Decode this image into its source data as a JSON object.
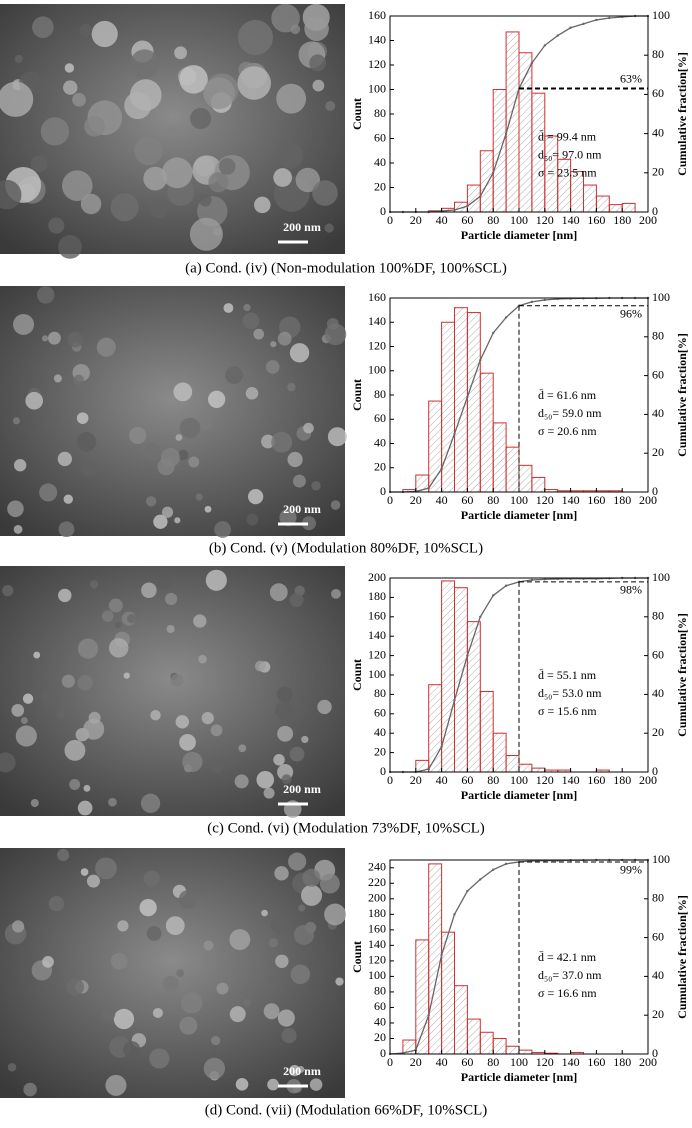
{
  "chart_data": [
    {
      "type": "histogram",
      "caption": "(a) Cond. (iv) (Non-modulation 100%DF, 100%SCL)",
      "scale_bar": "200 nm",
      "xlabel": "Particle diameter [nm]",
      "ylabel": "Count",
      "y2label": "Cumulative fraction[%]",
      "bins": [
        0,
        10,
        20,
        30,
        40,
        50,
        60,
        70,
        80,
        90,
        100,
        110,
        120,
        130,
        140,
        150,
        160,
        170,
        180,
        190,
        200
      ],
      "values": [
        0,
        0,
        0,
        1,
        3,
        8,
        22,
        50,
        100,
        147,
        130,
        97,
        62,
        43,
        33,
        22,
        13,
        6,
        7,
        0
      ],
      "color": "#d03030",
      "xlim": [
        0,
        200
      ],
      "xticks": [
        0,
        20,
        40,
        60,
        80,
        100,
        120,
        140,
        160,
        180,
        200
      ],
      "ylim": [
        0,
        160
      ],
      "yticks": [
        0,
        20,
        40,
        60,
        80,
        100,
        120,
        140,
        160
      ],
      "y2lim": [
        0,
        100
      ],
      "y2ticks": [
        0,
        20,
        40,
        60,
        80,
        100
      ],
      "cumulative": {
        "axis": "y2",
        "color": "#666666",
        "x": [
          0,
          10,
          20,
          30,
          40,
          50,
          60,
          70,
          80,
          90,
          100,
          110,
          120,
          130,
          140,
          150,
          160,
          170,
          180,
          190,
          200
        ],
        "values": [
          0,
          0,
          0,
          0,
          0.5,
          1,
          3,
          8,
          20,
          40,
          63,
          76,
          85,
          90,
          94,
          96,
          98,
          99,
          99.5,
          100,
          100
        ]
      },
      "ref": {
        "value": 63,
        "label": "63%",
        "vertical": false
      },
      "annotations": [
        "d̄ = 99.4 nm",
        "d₅₀= 97.0 nm",
        "σ = 23.5 nm"
      ]
    },
    {
      "type": "histogram",
      "caption": "(b) Cond. (v) (Modulation 80%DF, 10%SCL)",
      "scale_bar": "200 nm",
      "xlabel": "Particle diameter [nm]",
      "ylabel": "Count",
      "y2label": "Cumulative fraction[%]",
      "bins": [
        0,
        10,
        20,
        30,
        40,
        50,
        60,
        70,
        80,
        90,
        100,
        110,
        120,
        130,
        140,
        150,
        160,
        170,
        180,
        190,
        200
      ],
      "values": [
        0,
        2,
        14,
        75,
        140,
        152,
        148,
        98,
        57,
        37,
        22,
        12,
        2,
        1,
        1,
        1,
        1,
        1,
        0,
        0
      ],
      "color": "#d03030",
      "xlim": [
        0,
        200
      ],
      "xticks": [
        0,
        20,
        40,
        60,
        80,
        100,
        120,
        140,
        160,
        180,
        200
      ],
      "ylim": [
        0,
        160
      ],
      "yticks": [
        0,
        20,
        40,
        60,
        80,
        100,
        120,
        140,
        160
      ],
      "y2lim": [
        0,
        100
      ],
      "y2ticks": [
        0,
        20,
        40,
        60,
        80,
        100
      ],
      "cumulative": {
        "axis": "y2",
        "color": "#666666",
        "x": [
          0,
          10,
          20,
          30,
          40,
          50,
          60,
          70,
          80,
          90,
          100,
          110,
          120,
          130,
          140,
          150,
          160,
          170,
          180,
          190,
          200
        ],
        "values": [
          0,
          0,
          0.3,
          2,
          12,
          30,
          49,
          68,
          82,
          90,
          96,
          98,
          99,
          99.5,
          99.7,
          99.8,
          99.9,
          100,
          100,
          100,
          100
        ]
      },
      "ref": {
        "value": 96,
        "label": "96%",
        "vertical": true
      },
      "annotations": [
        "d̄ = 61.6 nm",
        "d₅₀= 59.0 nm",
        "σ = 20.6 nm"
      ]
    },
    {
      "type": "histogram",
      "caption": "(c) Cond. (vi) (Modulation 73%DF, 10%SCL)",
      "scale_bar": "200 nm",
      "xlabel": "Particle diameter [nm]",
      "ylabel": "Count",
      "y2label": "Cumulative fraction[%]",
      "bins": [
        0,
        10,
        20,
        30,
        40,
        50,
        60,
        70,
        80,
        90,
        100,
        110,
        120,
        130,
        140,
        150,
        160,
        170,
        180,
        190,
        200
      ],
      "values": [
        0,
        0,
        12,
        90,
        197,
        190,
        155,
        83,
        40,
        17,
        8,
        4,
        2,
        2,
        0,
        0,
        2,
        0,
        0,
        0
      ],
      "color": "#d03030",
      "xlim": [
        0,
        200
      ],
      "xticks": [
        0,
        20,
        40,
        60,
        80,
        100,
        120,
        140,
        160,
        180,
        200
      ],
      "ylim": [
        0,
        200
      ],
      "yticks": [
        0,
        20,
        40,
        60,
        80,
        100,
        120,
        140,
        160,
        180,
        200
      ],
      "y2lim": [
        0,
        100
      ],
      "y2ticks": [
        0,
        20,
        40,
        60,
        80,
        100
      ],
      "cumulative": {
        "axis": "y2",
        "color": "#666666",
        "x": [
          0,
          10,
          20,
          30,
          40,
          50,
          60,
          70,
          80,
          90,
          100,
          110,
          120,
          130,
          140,
          150,
          160,
          170,
          180,
          190,
          200
        ],
        "values": [
          0,
          0,
          0,
          1.5,
          13,
          37,
          60,
          80,
          91,
          96,
          98,
          99,
          99.3,
          99.5,
          99.6,
          99.6,
          99.6,
          99.8,
          100,
          100,
          100
        ]
      },
      "ref": {
        "value": 98,
        "label": "98%",
        "vertical": true
      },
      "annotations": [
        "d̄ = 55.1 nm",
        "d₅₀= 53.0 nm",
        "σ = 15.6 nm"
      ]
    },
    {
      "type": "histogram",
      "caption": "(d) Cond. (vii) (Modulation 66%DF, 10%SCL)",
      "scale_bar": "200 nm",
      "xlabel": "Particle diameter [nm]",
      "ylabel": "Count",
      "y2label": "Cumulative fraction[%]",
      "bins": [
        0,
        10,
        20,
        30,
        40,
        50,
        60,
        70,
        80,
        90,
        100,
        110,
        120,
        130,
        140,
        150,
        160,
        170,
        180,
        190,
        200
      ],
      "values": [
        0,
        18,
        147,
        245,
        157,
        88,
        45,
        28,
        20,
        10,
        5,
        2,
        1,
        0,
        2,
        0,
        0,
        0,
        0,
        0
      ],
      "color": "#d03030",
      "xlim": [
        0,
        200
      ],
      "xticks": [
        0,
        20,
        40,
        60,
        80,
        100,
        120,
        140,
        160,
        180,
        200
      ],
      "ylim": [
        0,
        250
      ],
      "yticks": [
        0,
        20,
        40,
        60,
        80,
        100,
        120,
        140,
        160,
        180,
        200,
        220,
        240
      ],
      "y2lim": [
        0,
        100
      ],
      "y2ticks": [
        0,
        20,
        40,
        60,
        80,
        100
      ],
      "cumulative": {
        "axis": "y2",
        "color": "#666666",
        "x": [
          0,
          10,
          20,
          30,
          40,
          50,
          60,
          70,
          80,
          90,
          100,
          110,
          120,
          130,
          140,
          150,
          160,
          170,
          180,
          190,
          200
        ],
        "values": [
          0,
          0.5,
          2,
          20,
          51,
          72,
          84,
          90,
          95,
          98,
          99,
          99.5,
          99.7,
          99.7,
          99.9,
          99.9,
          100,
          100,
          100,
          100,
          100
        ]
      },
      "ref": {
        "value": 99,
        "label": "99%",
        "vertical": true
      },
      "annotations": [
        "d̄ = 42.1 nm",
        "d₅₀= 37.0 nm",
        "σ = 16.6 nm"
      ]
    }
  ]
}
